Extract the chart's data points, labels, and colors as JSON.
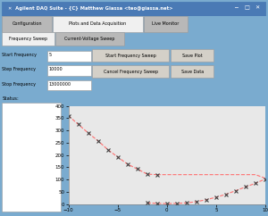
{
  "title": "Agilent DAQ Suite - {C} Matthew Giassa <teo@giassa.net>",
  "tab_main": [
    "Configuration",
    "Plots and Data Acquisition",
    "Live Monitor"
  ],
  "tab_main_active": 1,
  "tab_sub": [
    "Frequency Sweep",
    "Current-Voltage Sweep"
  ],
  "tab_sub_active": 0,
  "labels": [
    "Start Frequency",
    "Step Frequency",
    "Stop Frequency"
  ],
  "field_values": [
    "5",
    "10000",
    "13000000"
  ],
  "buttons_mid": [
    "Start Frequency Sweep",
    "Cancel Frequency Sweep"
  ],
  "buttons_right": [
    "Save Plot",
    "Save Data"
  ],
  "status_label": "Status:",
  "plot_xlim": [
    -10,
    10
  ],
  "plot_ylim": [
    0,
    400
  ],
  "plot_xticks": [
    -10,
    -5,
    0,
    5,
    10
  ],
  "plot_yticks": [
    0,
    50,
    100,
    150,
    200,
    250,
    300,
    350,
    400
  ],
  "series1_x": [
    -10,
    -9,
    -8,
    -7,
    -6,
    -5,
    -4,
    -3,
    -2,
    -1
  ],
  "series1_y": [
    360,
    325,
    290,
    258,
    222,
    192,
    163,
    143,
    122,
    120
  ],
  "series2_x": [
    -1,
    0,
    1,
    2,
    3,
    4,
    5,
    6,
    7,
    8,
    9,
    10
  ],
  "series2_y": [
    120,
    120,
    120,
    120,
    120,
    120,
    120,
    120,
    120,
    120,
    120,
    105
  ],
  "series3_x": [
    -2,
    -1,
    0,
    1,
    2,
    3,
    4,
    5,
    6,
    7,
    8,
    9,
    10
  ],
  "series3_y": [
    5,
    3,
    2,
    3,
    5,
    10,
    18,
    28,
    40,
    55,
    70,
    85,
    102
  ],
  "line_color": "#ff7070",
  "marker_color": "#404040",
  "bg_color": "#d4d0c8",
  "plot_bg": "#e8e8e8",
  "titlebar_color": "#4a7ab5",
  "active_tab_bg": "#f0f0f0",
  "inactive_tab_bg": "#b8b8b8",
  "field_bg": "#ffffff",
  "btn_bg": "#d4d0c8",
  "border_color": "#7aabcf",
  "status_bg": "#ffffff"
}
